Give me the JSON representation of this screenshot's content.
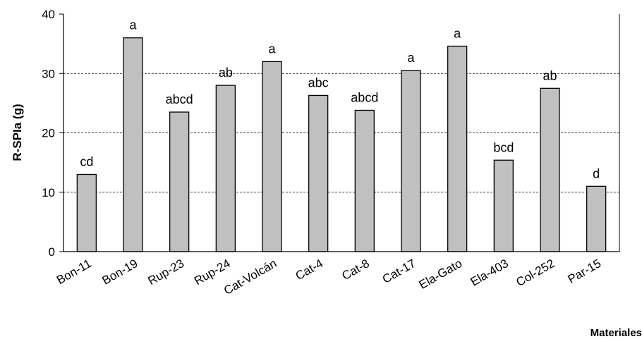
{
  "chart_data": {
    "type": "bar",
    "title": "",
    "xlabel": "Materiales",
    "ylabel": "R-SPIa (g)",
    "ylim": [
      0,
      40
    ],
    "yticks": [
      0,
      10,
      20,
      30,
      40
    ],
    "grid": "horizontal dashed at 10, 20, 30",
    "bar_color": "#c0c0c0",
    "bar_edge_color": "#000000",
    "categories": [
      "Bon-11",
      "Bon-19",
      "Rup-23",
      "Rup-24",
      "Cat-Volcán",
      "Cat-4",
      "Cat-8",
      "Cat-17",
      "Ela-Gato",
      "Ela-403",
      "Col-252",
      "Par-15"
    ],
    "values": [
      13.0,
      36.0,
      23.5,
      28.0,
      32.0,
      26.3,
      23.8,
      30.5,
      34.6,
      15.4,
      27.5,
      11.0
    ],
    "significance_labels": [
      "cd",
      "a",
      "abcd",
      "ab",
      "a",
      "abc",
      "abcd",
      "a",
      "a",
      "bcd",
      "ab",
      "d"
    ]
  }
}
